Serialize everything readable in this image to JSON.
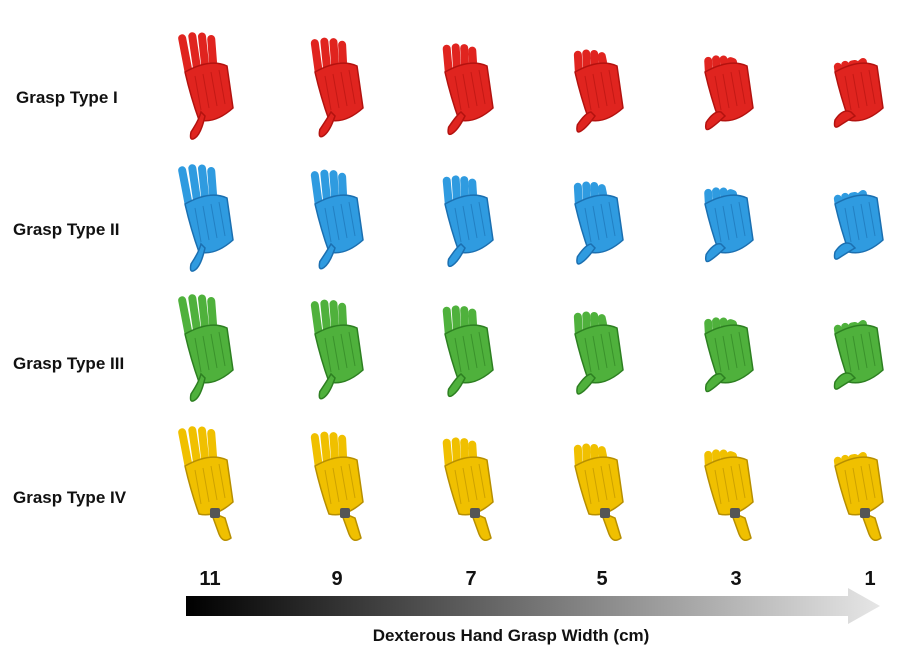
{
  "grasp_types": [
    {
      "label": "Grasp Type I",
      "color": "#e0241f",
      "shade": "#b3120f"
    },
    {
      "label": "Grasp Type II",
      "color": "#2f9be0",
      "shade": "#1b6fb0"
    },
    {
      "label": "Grasp Type III",
      "color": "#4fb13c",
      "shade": "#2d7f21"
    },
    {
      "label": "Grasp Type IV",
      "color": "#f0c000",
      "shade": "#b78f00"
    }
  ],
  "widths": [
    "11",
    "9",
    "7",
    "5",
    "3",
    "1"
  ],
  "axis_title": "Dexterous Hand Grasp Width (cm)",
  "gradient": {
    "start": "#000000",
    "end": "#e6e6e6"
  }
}
